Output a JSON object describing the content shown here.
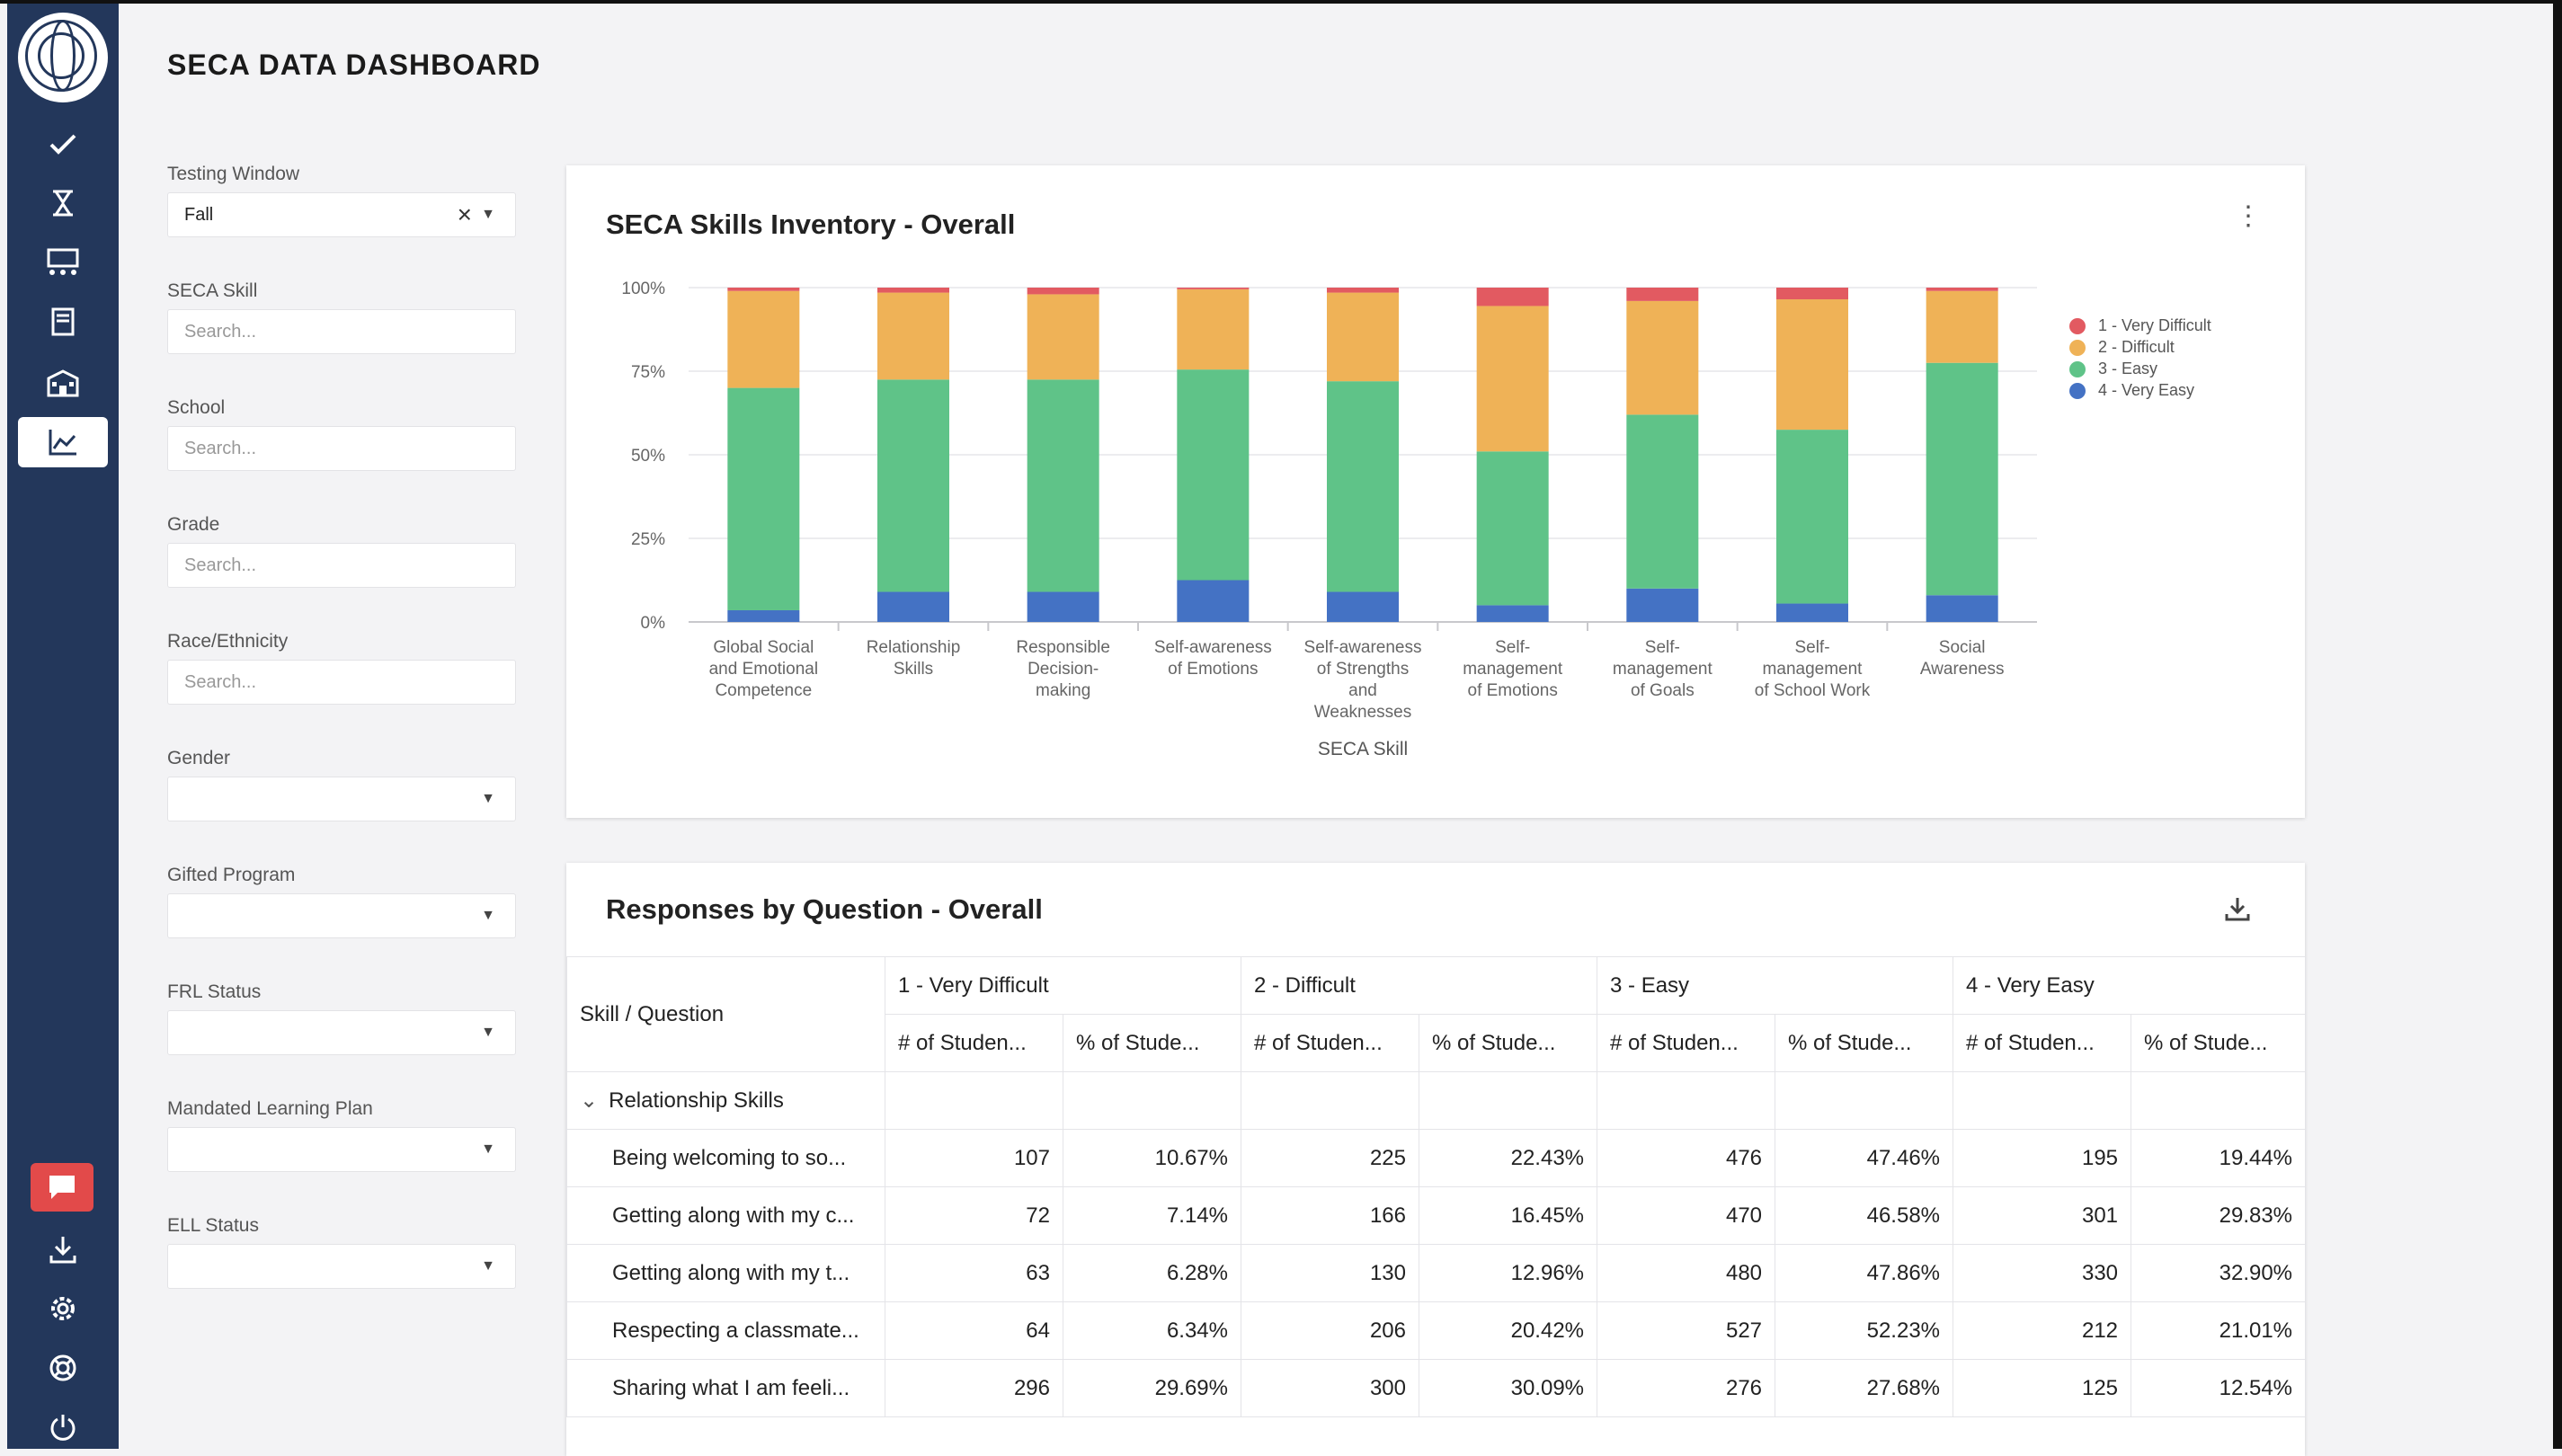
{
  "dashboard": {
    "title": "SECA DATA DASHBOARD"
  },
  "sidebar": {
    "icons": [
      "logo-icon",
      "check-icon",
      "hourglass-icon",
      "classroom-icon",
      "book-icon",
      "school-icon",
      "chart-icon",
      "chat-icon",
      "download-icon",
      "gear-icon",
      "lifebuoy-icon",
      "power-icon"
    ]
  },
  "filters": {
    "testing_window": {
      "label": "Testing Window",
      "value": "Fall"
    },
    "seca_skill": {
      "label": "SECA Skill",
      "placeholder": "Search..."
    },
    "school": {
      "label": "School",
      "placeholder": "Search..."
    },
    "grade": {
      "label": "Grade",
      "placeholder": "Search..."
    },
    "race": {
      "label": "Race/Ethnicity",
      "placeholder": "Search..."
    },
    "gender": {
      "label": "Gender",
      "value": ""
    },
    "gifted": {
      "label": "Gifted Program",
      "value": ""
    },
    "frl": {
      "label": "FRL Status",
      "value": ""
    },
    "mlp": {
      "label": "Mandated Learning Plan",
      "value": ""
    },
    "ell": {
      "label": "ELL Status",
      "value": ""
    }
  },
  "chart_card": {
    "title": "SECA Skills Inventory - Overall"
  },
  "chart_data": {
    "type": "bar",
    "stacked": true,
    "title": "SECA Skills Inventory - Overall",
    "xlabel": "SECA Skill",
    "ylabel": "",
    "ylim": [
      0,
      100
    ],
    "yticks": [
      "0%",
      "25%",
      "50%",
      "75%",
      "100%"
    ],
    "legend_position": "right",
    "categories": [
      [
        "Global Social",
        "and Emotional",
        "Competence"
      ],
      [
        "Relationship",
        "Skills"
      ],
      [
        "Responsible",
        "Decision-",
        "making"
      ],
      [
        "Self-awareness",
        "of Emotions"
      ],
      [
        "Self-awareness",
        "of Strengths",
        "and",
        "Weaknesses"
      ],
      [
        "Self-",
        "management",
        "of Emotions"
      ],
      [
        "Self-",
        "management",
        "of Goals"
      ],
      [
        "Self-",
        "management",
        "of School Work"
      ],
      [
        "Social",
        "Awareness"
      ]
    ],
    "series": [
      {
        "name": "4 - Very Easy",
        "color": "#4472c4",
        "values": [
          3.5,
          9,
          9,
          12.5,
          9,
          5,
          10,
          5.5,
          8
        ]
      },
      {
        "name": "3 - Easy",
        "color": "#5fc388",
        "values": [
          66.5,
          63.5,
          63.5,
          63,
          63,
          46,
          52,
          52,
          69.5
        ]
      },
      {
        "name": "2 - Difficult",
        "color": "#efb257",
        "values": [
          29,
          26,
          25.5,
          24,
          26.5,
          43.5,
          34,
          39,
          21.5
        ]
      },
      {
        "name": "1 - Very Difficult",
        "color": "#e25a61",
        "values": [
          1,
          1.5,
          2,
          0.5,
          1.5,
          5.5,
          4,
          3.5,
          1
        ]
      }
    ]
  },
  "table_card": {
    "title": "Responses by Question - Overall",
    "col_skill": "Skill / Question",
    "groups": [
      "1 - Very Difficult",
      "2 - Difficult",
      "3 - Easy",
      "4 - Very Easy"
    ],
    "sub_count": "# of Studen...",
    "sub_pct": "% of Stude...",
    "group_row": "Relationship Skills",
    "rows": [
      {
        "q": "Being welcoming to so...",
        "v": [
          "107",
          "10.67%",
          "225",
          "22.43%",
          "476",
          "47.46%",
          "195",
          "19.44%"
        ]
      },
      {
        "q": "Getting along with my c...",
        "v": [
          "72",
          "7.14%",
          "166",
          "16.45%",
          "470",
          "46.58%",
          "301",
          "29.83%"
        ]
      },
      {
        "q": "Getting along with my t...",
        "v": [
          "63",
          "6.28%",
          "130",
          "12.96%",
          "480",
          "47.86%",
          "330",
          "32.90%"
        ]
      },
      {
        "q": "Respecting a classmate...",
        "v": [
          "64",
          "6.34%",
          "206",
          "20.42%",
          "527",
          "52.23%",
          "212",
          "21.01%"
        ]
      },
      {
        "q": "Sharing what I am feeli...",
        "v": [
          "296",
          "29.69%",
          "300",
          "30.09%",
          "276",
          "27.68%",
          "125",
          "12.54%"
        ]
      }
    ]
  }
}
